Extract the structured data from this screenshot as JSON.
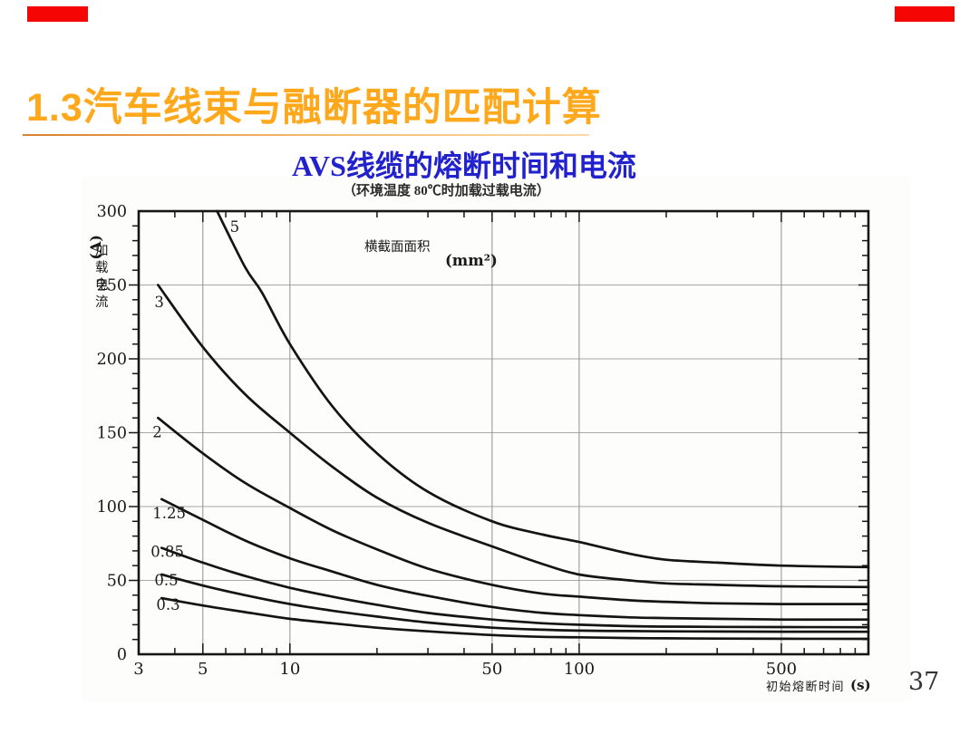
{
  "slide": {
    "title": "1.3汽车线束与融断器的匹配计算",
    "page_number": "37",
    "colors": {
      "red_bar": "#f60505",
      "title_orange": "#ffa81c",
      "subtitle_blue": "#2222cc",
      "curve_black": "#141414",
      "grid_gray": "#a8a8a8",
      "vgrid_gray": "#8f8f8f"
    }
  },
  "chart_data": {
    "type": "line",
    "title": "AVS线缆的熔断时间和电流",
    "subtitle": "（环境温度 80℃时加载过载电流）",
    "xlabel": "初始熔断时间",
    "xunit": "(s)",
    "ylabel_name": "加载电流",
    "ylabel_unit": "(A)",
    "series_group_label": "横截面面积",
    "series_group_unit": "(mm²)",
    "x_scale": "log",
    "xlim": [
      3,
      1000
    ],
    "ylim": [
      0,
      300
    ],
    "x_major_ticks": [
      3,
      5,
      10,
      50,
      100,
      500
    ],
    "x_minor_ticks": [
      4,
      6,
      7,
      8,
      9,
      20,
      30,
      40,
      60,
      70,
      80,
      90,
      200,
      300,
      400,
      600,
      700,
      800,
      900
    ],
    "x_gridlines": [
      5,
      10,
      50,
      100,
      500
    ],
    "y_major_ticks": [
      0,
      50,
      100,
      150,
      200,
      250,
      300
    ],
    "y_minor_step": 10,
    "grid": true,
    "legend_position": "labels-at-curve-start",
    "series": [
      {
        "name": "5",
        "label_pos": [
          6.2,
          286
        ],
        "points": [
          [
            5.6,
            300
          ],
          [
            7,
            262
          ],
          [
            8,
            245
          ],
          [
            10,
            210
          ],
          [
            14,
            168
          ],
          [
            20,
            136
          ],
          [
            30,
            110
          ],
          [
            50,
            90
          ],
          [
            75,
            81
          ],
          [
            100,
            76
          ],
          [
            150,
            68
          ],
          [
            200,
            64
          ],
          [
            300,
            62
          ],
          [
            500,
            60
          ],
          [
            1000,
            59
          ]
        ]
      },
      {
        "name": "3",
        "label_pos": [
          3.4,
          235
        ],
        "points": [
          [
            3.5,
            250
          ],
          [
            5,
            208
          ],
          [
            7,
            176
          ],
          [
            10,
            150
          ],
          [
            14,
            127
          ],
          [
            20,
            106
          ],
          [
            30,
            89
          ],
          [
            50,
            73
          ],
          [
            75,
            61
          ],
          [
            100,
            54
          ],
          [
            150,
            50
          ],
          [
            200,
            48
          ],
          [
            300,
            47
          ],
          [
            500,
            46
          ],
          [
            1000,
            45.5
          ]
        ]
      },
      {
        "name": "2",
        "label_pos": [
          3.35,
          147
        ],
        "points": [
          [
            3.5,
            160
          ],
          [
            5,
            136
          ],
          [
            7,
            116
          ],
          [
            10,
            99
          ],
          [
            14,
            84
          ],
          [
            20,
            71
          ],
          [
            30,
            58
          ],
          [
            50,
            47
          ],
          [
            75,
            41
          ],
          [
            100,
            39
          ],
          [
            150,
            36.5
          ],
          [
            200,
            35.5
          ],
          [
            300,
            34.5
          ],
          [
            500,
            34
          ],
          [
            1000,
            34
          ]
        ]
      },
      {
        "name": "1.25",
        "label_pos": [
          3.35,
          92
        ],
        "points": [
          [
            3.6,
            105
          ],
          [
            5,
            91
          ],
          [
            7,
            77
          ],
          [
            10,
            65
          ],
          [
            14,
            56
          ],
          [
            20,
            47
          ],
          [
            30,
            39.5
          ],
          [
            50,
            32
          ],
          [
            75,
            28
          ],
          [
            100,
            26.5
          ],
          [
            150,
            25
          ],
          [
            200,
            24.5
          ],
          [
            300,
            24
          ],
          [
            500,
            23.5
          ],
          [
            1000,
            23.5
          ]
        ]
      },
      {
        "name": "0.85",
        "label_pos": [
          3.3,
          66
        ],
        "points": [
          [
            3.6,
            72
          ],
          [
            5,
            62
          ],
          [
            7,
            53
          ],
          [
            10,
            45
          ],
          [
            14,
            39
          ],
          [
            20,
            33.5
          ],
          [
            30,
            28
          ],
          [
            50,
            23.5
          ],
          [
            75,
            21
          ],
          [
            100,
            20
          ],
          [
            150,
            19
          ],
          [
            200,
            18.7
          ],
          [
            300,
            18.5
          ],
          [
            500,
            18.4
          ],
          [
            1000,
            18.3
          ]
        ]
      },
      {
        "name": "0.5",
        "label_pos": [
          3.4,
          46.5
        ],
        "points": [
          [
            3.6,
            54
          ],
          [
            5,
            46.5
          ],
          [
            7,
            40
          ],
          [
            10,
            34
          ],
          [
            14,
            29.5
          ],
          [
            20,
            25.5
          ],
          [
            30,
            21.5
          ],
          [
            50,
            18
          ],
          [
            75,
            16.6
          ],
          [
            100,
            16
          ],
          [
            150,
            15.7
          ],
          [
            200,
            15.5
          ],
          [
            300,
            15.4
          ],
          [
            500,
            15.3
          ],
          [
            1000,
            15.2
          ]
        ]
      },
      {
        "name": "0.3",
        "label_pos": [
          3.45,
          30
        ],
        "points": [
          [
            3.6,
            38
          ],
          [
            5,
            33
          ],
          [
            7,
            28.5
          ],
          [
            10,
            24
          ],
          [
            14,
            21
          ],
          [
            20,
            18
          ],
          [
            30,
            15.5
          ],
          [
            50,
            13
          ],
          [
            75,
            11.8
          ],
          [
            100,
            11.5
          ],
          [
            150,
            11
          ],
          [
            200,
            10.8
          ],
          [
            300,
            10.6
          ],
          [
            500,
            10.5
          ],
          [
            1000,
            10.4
          ]
        ]
      }
    ]
  }
}
